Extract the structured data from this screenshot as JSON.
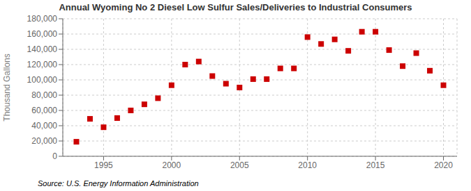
{
  "chart_data": {
    "type": "scatter",
    "title": "Annual Wyoming No 2 Diesel Low Sulfur Sales/Deliveries to Industrial Consumers",
    "ylabel": "Thousand Gallons",
    "annotations": [
      "Source: U.S. Energy Information Administration"
    ],
    "x": [
      1993,
      1994,
      1995,
      1996,
      1997,
      1998,
      1999,
      2000,
      2001,
      2002,
      2003,
      2004,
      2005,
      2006,
      2007,
      2008,
      2009,
      2010,
      2011,
      2012,
      2013,
      2014,
      2015,
      2016,
      2017,
      2018,
      2019,
      2020
    ],
    "values": [
      19000,
      49000,
      38000,
      50000,
      60000,
      68000,
      76000,
      93000,
      120000,
      124000,
      105000,
      95000,
      90000,
      101000,
      101000,
      115000,
      115000,
      156000,
      147000,
      153000,
      138000,
      163000,
      163000,
      139000,
      118000,
      135000,
      112000,
      93000
    ],
    "color": "#cc0000",
    "marker": "square",
    "xlim": [
      1992,
      2021
    ],
    "ylim": [
      0,
      180000
    ],
    "xticks": [
      1995,
      2000,
      2005,
      2010,
      2015,
      2020
    ],
    "yticks": [
      0,
      {
        "value": 20000,
        "label": "20,000"
      },
      {
        "value": 40000,
        "label": "40,000"
      },
      {
        "value": 60000,
        "label": "60,000"
      },
      {
        "value": 80000,
        "label": "80,000"
      },
      {
        "value": 100000,
        "label": "100,000"
      },
      {
        "value": 120000,
        "label": "120,000"
      },
      {
        "value": 140000,
        "label": "140,000"
      },
      {
        "value": 160000,
        "label": "160,000"
      },
      {
        "value": 180000,
        "label": "180,000"
      }
    ],
    "grid": true
  }
}
